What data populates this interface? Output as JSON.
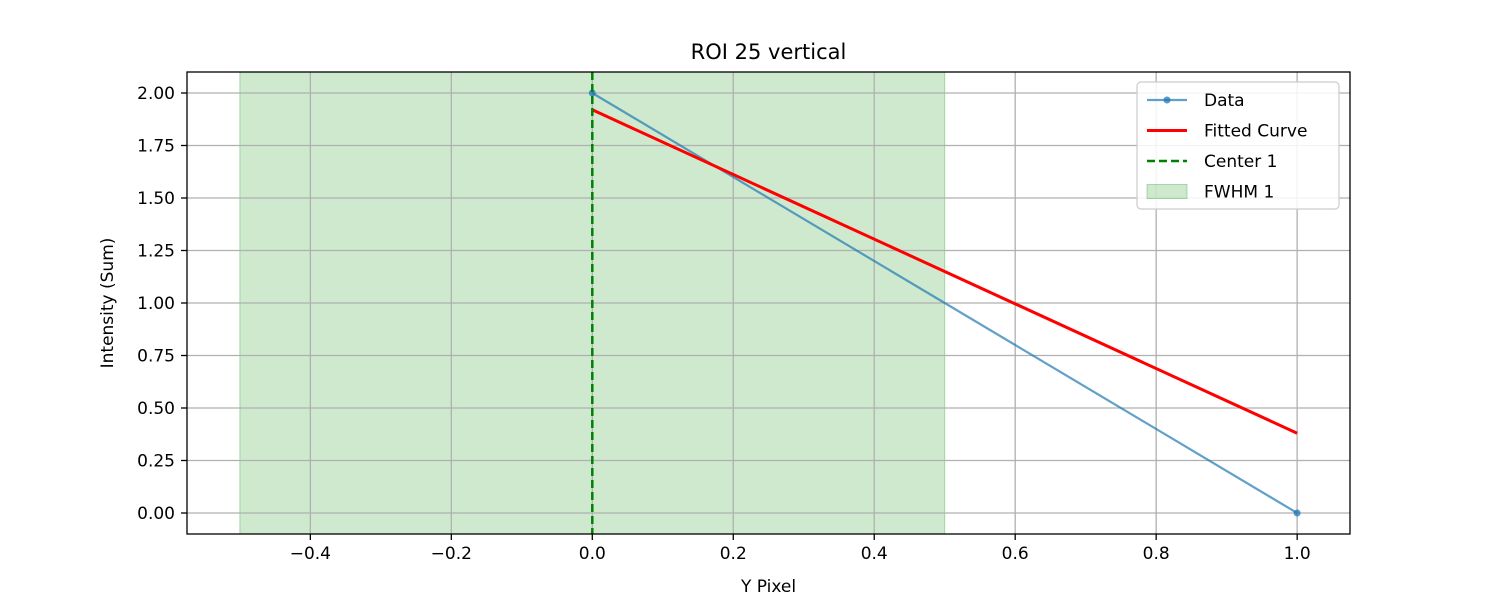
{
  "chart_data": {
    "type": "line",
    "title": "ROI 25 vertical",
    "xlabel": "Y Pixel",
    "ylabel": "Intensity (Sum)",
    "xlim": [
      -0.575,
      1.075
    ],
    "ylim": [
      -0.1,
      2.1
    ],
    "xticks": [
      -0.4,
      -0.2,
      0.0,
      0.2,
      0.4,
      0.6,
      0.8,
      1.0
    ],
    "xtick_labels": [
      "−0.4",
      "−0.2",
      "0.0",
      "0.2",
      "0.4",
      "0.6",
      "0.8",
      "1.0"
    ],
    "yticks": [
      0.0,
      0.25,
      0.5,
      0.75,
      1.0,
      1.25,
      1.5,
      1.75,
      2.0
    ],
    "ytick_labels": [
      "0.00",
      "0.25",
      "0.50",
      "0.75",
      "1.00",
      "1.25",
      "1.50",
      "1.75",
      "2.00"
    ],
    "grid": true,
    "legend_position": "top-right",
    "series": [
      {
        "name": "Data",
        "kind": "line-marker",
        "color": "#1f77b4",
        "x": [
          0.0,
          1.0
        ],
        "y": [
          2.0,
          0.0
        ]
      },
      {
        "name": "Fitted Curve",
        "kind": "line",
        "color": "#ff0000",
        "x": [
          0.0,
          1.0
        ],
        "y": [
          1.92,
          0.38
        ]
      },
      {
        "name": "Center 1",
        "kind": "vline-dashed",
        "color": "#008000",
        "x": 0.0
      },
      {
        "name": "FWHM 1",
        "kind": "span",
        "color": "#2ca02c",
        "x0": -0.5,
        "x1": 0.5
      }
    ]
  }
}
